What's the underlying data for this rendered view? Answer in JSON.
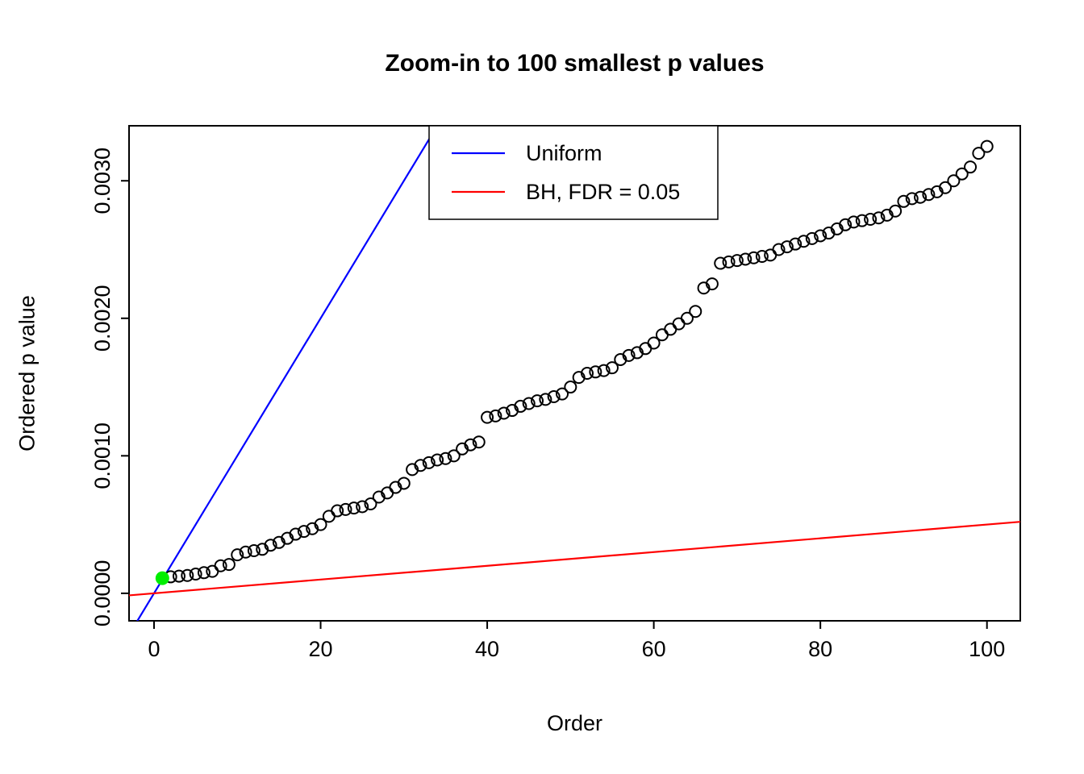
{
  "chart_data": {
    "type": "scatter",
    "title": "Zoom-in to 100 smallest p values",
    "xlabel": "Order",
    "ylabel": "Ordered p value",
    "xlim": [
      -3,
      104
    ],
    "ylim": [
      -0.0002,
      0.0034
    ],
    "grid": false,
    "x_ticks": [
      0,
      20,
      40,
      60,
      80,
      100
    ],
    "y_ticks": [
      {
        "value": 0.0,
        "label": "0.0000"
      },
      {
        "value": 0.001,
        "label": "0.0010"
      },
      {
        "value": 0.002,
        "label": "0.0020"
      },
      {
        "value": 0.003,
        "label": "0.0030"
      }
    ],
    "points": {
      "name": "ordered-p-values",
      "marker": "open-circle",
      "color": "#000000",
      "x_rule": "order index 1 to 100",
      "p_values": [
        0.00011,
        0.00012,
        0.000125,
        0.00013,
        0.00014,
        0.00015,
        0.00016,
        0.0002,
        0.00021,
        0.00028,
        0.0003,
        0.00031,
        0.00032,
        0.00035,
        0.00037,
        0.0004,
        0.00043,
        0.00045,
        0.00047,
        0.0005,
        0.00056,
        0.0006,
        0.00061,
        0.00062,
        0.00063,
        0.00065,
        0.0007,
        0.00073,
        0.00077,
        0.0008,
        0.0009,
        0.00093,
        0.00095,
        0.00097,
        0.00098,
        0.001,
        0.00105,
        0.00108,
        0.0011,
        0.00128,
        0.00129,
        0.00131,
        0.00133,
        0.00136,
        0.00138,
        0.0014,
        0.00141,
        0.00143,
        0.00145,
        0.0015,
        0.00157,
        0.0016,
        0.00161,
        0.00162,
        0.00164,
        0.0017,
        0.00173,
        0.00175,
        0.00178,
        0.00182,
        0.00188,
        0.00192,
        0.00196,
        0.002,
        0.00205,
        0.00222,
        0.00225,
        0.0024,
        0.00241,
        0.00242,
        0.00243,
        0.00244,
        0.00245,
        0.00246,
        0.0025,
        0.00252,
        0.00254,
        0.00256,
        0.00258,
        0.0026,
        0.00262,
        0.00265,
        0.00268,
        0.0027,
        0.00271,
        0.00272,
        0.00273,
        0.00275,
        0.00278,
        0.00285,
        0.00287,
        0.00288,
        0.0029,
        0.00292,
        0.00295,
        0.003,
        0.00305,
        0.0031,
        0.0032,
        0.00325
      ]
    },
    "highlight_point": {
      "name": "smallest-p-value",
      "order": 1,
      "p_value": 0.00011,
      "marker": "filled-circle",
      "color": "#00EE00"
    },
    "ref_lines": [
      {
        "name": "Uniform",
        "color": "#0000FF",
        "slope": 0.0001,
        "intercept": 0
      },
      {
        "name": "BH, FDR = 0.05",
        "color": "#FF0000",
        "slope": 5e-06,
        "intercept": 0
      }
    ],
    "legend": {
      "position": "top-center",
      "entries": [
        {
          "label": "Uniform",
          "color": "#0000FF"
        },
        {
          "label": "BH, FDR = 0.05",
          "color": "#FF0000"
        }
      ]
    }
  }
}
